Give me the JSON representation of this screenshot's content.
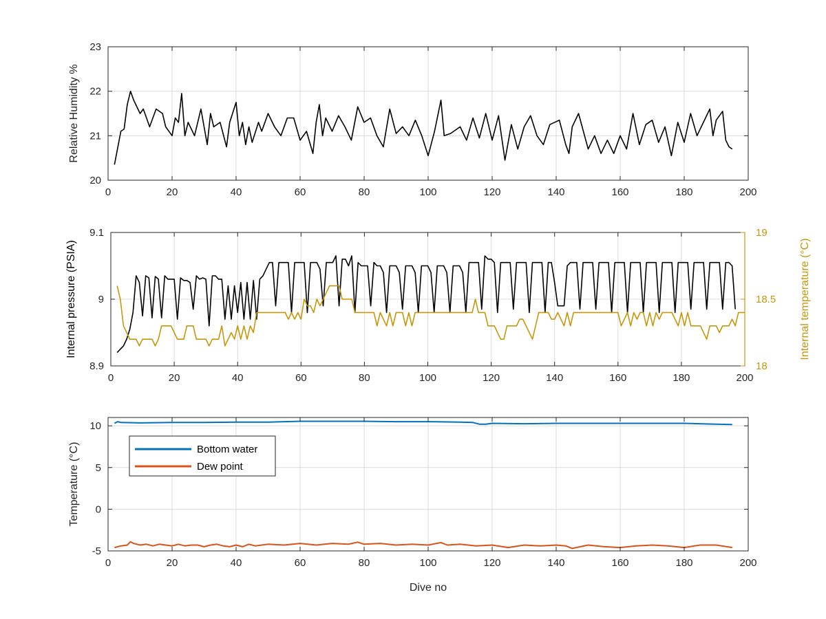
{
  "figure": {
    "background": "#ffffff",
    "grid_color": "#dcdcdc",
    "axis_color": "#262626"
  },
  "chart_data": [
    {
      "type": "line",
      "title": "",
      "xlabel": "",
      "ylabel": "Relative Humidity %",
      "xlim": [
        0,
        200
      ],
      "ylim": [
        20,
        23
      ],
      "xticks": [
        0,
        20,
        40,
        60,
        80,
        100,
        120,
        140,
        160,
        180,
        200
      ],
      "yticks": [
        20,
        21,
        22,
        23
      ],
      "grid": true,
      "series": [
        {
          "color": "#000000",
          "x": [
            2,
            4,
            5,
            6,
            7,
            8,
            10,
            11,
            13,
            15,
            17,
            18,
            20,
            21,
            22,
            23,
            24,
            25,
            27,
            29,
            30,
            31,
            32,
            33,
            35,
            37,
            38,
            40,
            41,
            42,
            43,
            44,
            45,
            47,
            48,
            50,
            52,
            54,
            56,
            58,
            60,
            62,
            64,
            65,
            66,
            67,
            68,
            70,
            72,
            74,
            76,
            78,
            80,
            82,
            84,
            86,
            88,
            90,
            92,
            94,
            96,
            98,
            100,
            102,
            104,
            105,
            107,
            110,
            112,
            114,
            116,
            118,
            120,
            122,
            124,
            126,
            128,
            130,
            132,
            134,
            136,
            138,
            141,
            143,
            144,
            145,
            147,
            150,
            152,
            154,
            156,
            158,
            160,
            162,
            164,
            166,
            168,
            170,
            172,
            174,
            176,
            178,
            180,
            182,
            184,
            186,
            188,
            189,
            190,
            192,
            193,
            194,
            195
          ],
          "y": [
            20.35,
            21.1,
            21.15,
            21.7,
            22.0,
            21.8,
            21.5,
            21.6,
            21.2,
            21.6,
            21.5,
            21.2,
            21.0,
            21.4,
            21.3,
            21.95,
            21.0,
            21.3,
            21.0,
            21.6,
            21.2,
            20.8,
            21.5,
            21.2,
            21.3,
            20.75,
            21.3,
            21.75,
            21.0,
            21.3,
            20.8,
            21.2,
            20.85,
            21.3,
            21.1,
            21.5,
            21.2,
            21.0,
            21.4,
            21.4,
            20.9,
            21.1,
            20.6,
            21.3,
            21.7,
            21.0,
            21.4,
            21.1,
            21.45,
            21.2,
            20.9,
            21.65,
            21.3,
            21.4,
            21.0,
            20.75,
            21.6,
            21.05,
            21.2,
            21.0,
            21.35,
            21.0,
            20.55,
            21.1,
            21.8,
            21.0,
            21.05,
            21.2,
            20.9,
            21.4,
            20.95,
            21.5,
            20.9,
            21.45,
            20.45,
            21.25,
            20.7,
            21.2,
            21.45,
            21.0,
            20.8,
            21.25,
            21.35,
            20.8,
            20.6,
            21.2,
            21.5,
            20.7,
            21.0,
            20.6,
            20.9,
            20.6,
            21.0,
            20.7,
            21.5,
            20.8,
            21.25,
            21.35,
            20.85,
            21.2,
            20.55,
            21.3,
            20.85,
            21.5,
            21.0,
            21.3,
            21.6,
            21.0,
            21.35,
            21.55,
            20.9,
            20.75,
            20.7
          ]
        }
      ]
    },
    {
      "type": "line",
      "title": "",
      "xlabel": "",
      "ylabel": "Internal pressure (PSIA)",
      "ylabel_right": "Internal temperature (°C)",
      "xlim": [
        0,
        200
      ],
      "ylim": [
        8.9,
        9.1
      ],
      "ylim_right": [
        18,
        19
      ],
      "xticks": [
        0,
        20,
        40,
        60,
        80,
        100,
        120,
        140,
        160,
        180,
        200
      ],
      "yticks": [
        8.9,
        9,
        9.1
      ],
      "yticks_right": [
        18,
        18.5,
        19
      ],
      "grid": true,
      "series": [
        {
          "axis": "left",
          "color": "#000000",
          "x_start": 2,
          "x_step": 1,
          "y": [
            8.92,
            8.925,
            8.93,
            8.94,
            8.955,
            8.98,
            9.035,
            9.025,
            8.975,
            9.035,
            9.032,
            8.972,
            9.034,
            9.03,
            8.972,
            9.035,
            9.03,
            9.03,
            9.03,
            8.97,
            9.032,
            9.028,
            9.028,
            9.025,
            8.985,
            9.035,
            9.03,
            9.032,
            9.03,
            8.96,
            9.035,
            9.035,
            9.03,
            9.03,
            8.97,
            9.02,
            8.97,
            9.02,
            8.98,
            9.025,
            8.97,
            9.025,
            8.97,
            9.028,
            8.97,
            9.03,
            9.035,
            9.045,
            9.055,
            9.055,
            8.99,
            9.055,
            9.055,
            9.055,
            9.055,
            8.98,
            9.055,
            9.055,
            9.055,
            9.055,
            8.98,
            9.055,
            9.055,
            9.055,
            9.045,
            8.99,
            9.055,
            9.055,
            9.055,
            9.065,
            8.99,
            9.06,
            9.06,
            9.05,
            9.065,
            8.98,
            9.055,
            9.05,
            9.05,
            9.05,
            8.99,
            9.055,
            9.05,
            9.05,
            9.04,
            8.98,
            9.05,
            9.05,
            9.05,
            9.04,
            8.985,
            9.05,
            9.05,
            9.05,
            9.04,
            8.98,
            9.05,
            9.05,
            9.05,
            9.04,
            8.98,
            9.05,
            9.05,
            9.05,
            9.04,
            8.98,
            9.05,
            9.05,
            9.05,
            9.04,
            8.98,
            9.055,
            9.055,
            9.055,
            9.055,
            8.985,
            9.065,
            9.06,
            9.06,
            9.055,
            8.98,
            9.055,
            9.055,
            9.055,
            9.055,
            8.985,
            9.055,
            9.055,
            9.055,
            9.055,
            8.98,
            9.055,
            9.055,
            9.055,
            9.055,
            8.98,
            9.055,
            9.055,
            9.025,
            8.99,
            8.99,
            8.99,
            9.05,
            9.055,
            9.055,
            9.055,
            8.985,
            9.055,
            9.055,
            9.055,
            9.055,
            8.985,
            9.055,
            9.055,
            9.055,
            9.055,
            8.98,
            9.055,
            9.055,
            9.055,
            9.055,
            8.98,
            9.055,
            9.055,
            9.055,
            9.055,
            8.98,
            9.055,
            9.055,
            9.055,
            9.055,
            8.98,
            9.055,
            9.055,
            9.055,
            9.055,
            8.98,
            9.055,
            9.055,
            9.055,
            9.055,
            8.985,
            9.055,
            9.055,
            9.055,
            9.055,
            8.985,
            9.055,
            9.055,
            9.055,
            9.055,
            8.985,
            9.055,
            9.055,
            9.05,
            8.985
          ]
        },
        {
          "axis": "right",
          "color": "#c8960a",
          "x_start": 2,
          "x_step": 1,
          "y": [
            18.6,
            18.5,
            18.3,
            18.25,
            18.2,
            18.2,
            18.2,
            18.15,
            18.2,
            18.2,
            18.2,
            18.2,
            18.15,
            18.2,
            18.3,
            18.3,
            18.3,
            18.3,
            18.25,
            18.2,
            18.2,
            18.2,
            18.3,
            18.3,
            18.3,
            18.2,
            18.2,
            18.2,
            18.2,
            18.15,
            18.2,
            18.2,
            18.2,
            18.3,
            18.15,
            18.2,
            18.25,
            18.2,
            18.3,
            18.2,
            18.3,
            18.2,
            18.3,
            18.25,
            18.4,
            18.4,
            18.4,
            18.4,
            18.4,
            18.4,
            18.4,
            18.4,
            18.4,
            18.4,
            18.35,
            18.4,
            18.35,
            18.4,
            18.35,
            18.5,
            18.45,
            18.45,
            18.4,
            18.5,
            18.45,
            18.5,
            18.55,
            18.6,
            18.6,
            18.6,
            18.6,
            18.5,
            18.5,
            18.5,
            18.5,
            18.4,
            18.4,
            18.4,
            18.4,
            18.4,
            18.4,
            18.4,
            18.3,
            18.4,
            18.35,
            18.3,
            18.4,
            18.3,
            18.4,
            18.4,
            18.4,
            18.3,
            18.4,
            18.3,
            18.4,
            18.4,
            18.4,
            18.4,
            18.4,
            18.4,
            18.4,
            18.4,
            18.4,
            18.4,
            18.4,
            18.4,
            18.4,
            18.4,
            18.4,
            18.4,
            18.4,
            18.4,
            18.4,
            18.5,
            18.4,
            18.4,
            18.4,
            18.3,
            18.3,
            18.3,
            18.25,
            18.2,
            18.2,
            18.3,
            18.3,
            18.3,
            18.3,
            18.35,
            18.35,
            18.3,
            18.25,
            18.2,
            18.3,
            18.4,
            18.4,
            18.4,
            18.4,
            18.35,
            18.35,
            18.4,
            18.35,
            18.3,
            18.4,
            18.3,
            18.4,
            18.4,
            18.4,
            18.4,
            18.4,
            18.4,
            18.4,
            18.4,
            18.4,
            18.4,
            18.4,
            18.4,
            18.4,
            18.4,
            18.4,
            18.3,
            18.35,
            18.4,
            18.3,
            18.4,
            18.35,
            18.4,
            18.4,
            18.3,
            18.4,
            18.3,
            18.4,
            18.35,
            18.4,
            18.4,
            18.4,
            18.4,
            18.35,
            18.3,
            18.4,
            18.3,
            18.4,
            18.3,
            18.3,
            18.3,
            18.3,
            18.25,
            18.2,
            18.3,
            18.3,
            18.3,
            18.25,
            18.3,
            18.3,
            18.3,
            18.35,
            18.3,
            18.4,
            18.4,
            18.4,
            18.35,
            18.3,
            18.3
          ]
        }
      ]
    },
    {
      "type": "line",
      "title": "",
      "xlabel": "Dive no",
      "ylabel": "Temperature (°C)",
      "xlim": [
        0,
        200
      ],
      "ylim": [
        -5,
        11
      ],
      "xticks": [
        0,
        20,
        40,
        60,
        80,
        100,
        120,
        140,
        160,
        180,
        200
      ],
      "yticks": [
        -5,
        0,
        5,
        10
      ],
      "grid": true,
      "legend": {
        "placement": "top-left"
      },
      "series": [
        {
          "name": "Bottom water",
          "color": "#0072bd",
          "x": [
            2,
            3,
            4,
            10,
            20,
            30,
            40,
            50,
            60,
            70,
            80,
            90,
            100,
            110,
            114,
            116,
            118,
            120,
            130,
            140,
            150,
            160,
            170,
            180,
            190,
            195
          ],
          "y": [
            10.3,
            10.5,
            10.4,
            10.35,
            10.4,
            10.4,
            10.45,
            10.45,
            10.55,
            10.55,
            10.55,
            10.5,
            10.5,
            10.45,
            10.4,
            10.2,
            10.2,
            10.3,
            10.25,
            10.3,
            10.3,
            10.3,
            10.3,
            10.3,
            10.2,
            10.15
          ]
        },
        {
          "name": "Dew point",
          "color": "#d95319",
          "x": [
            2,
            4,
            6,
            7,
            8,
            10,
            12,
            14,
            16,
            18,
            20,
            22,
            24,
            26,
            28,
            30,
            32,
            34,
            36,
            38,
            40,
            42,
            44,
            46,
            48,
            50,
            55,
            60,
            65,
            70,
            75,
            78,
            80,
            85,
            90,
            95,
            100,
            104,
            106,
            110,
            115,
            120,
            125,
            130,
            135,
            140,
            143,
            145,
            150,
            155,
            160,
            165,
            170,
            175,
            180,
            185,
            190,
            195
          ],
          "y": [
            -4.6,
            -4.4,
            -4.3,
            -3.9,
            -4.1,
            -4.3,
            -4.2,
            -4.4,
            -4.2,
            -4.3,
            -4.4,
            -4.2,
            -4.4,
            -4.3,
            -4.3,
            -4.5,
            -4.3,
            -4.2,
            -4.4,
            -4.5,
            -4.3,
            -4.5,
            -4.2,
            -4.4,
            -4.3,
            -4.2,
            -4.3,
            -4.1,
            -4.3,
            -4.1,
            -4.2,
            -3.95,
            -4.2,
            -4.1,
            -4.3,
            -4.2,
            -4.3,
            -4.0,
            -4.3,
            -4.2,
            -4.4,
            -4.3,
            -4.6,
            -4.3,
            -4.4,
            -4.3,
            -4.4,
            -4.7,
            -4.3,
            -4.5,
            -4.6,
            -4.4,
            -4.3,
            -4.4,
            -4.6,
            -4.3,
            -4.3,
            -4.6
          ]
        }
      ]
    }
  ]
}
